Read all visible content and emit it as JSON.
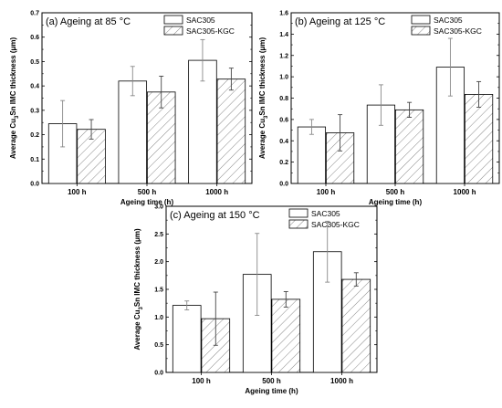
{
  "chart_data": [
    {
      "type": "bar",
      "title": "(a)  Ageing at 85 °C",
      "xlabel": "Ageing time (h)",
      "ylabel_parts": [
        "Average Cu",
        "3",
        "Sn IMC thickness (μm)"
      ],
      "categories": [
        "100 h",
        "500 h",
        "1000 h"
      ],
      "ylim": [
        0,
        0.7
      ],
      "yticks": [
        "0.0",
        "0.1",
        "0.2",
        "0.3",
        "0.4",
        "0.5",
        "0.6",
        "0.7"
      ],
      "legend_position": "top-right",
      "series": [
        {
          "name": "SAC305",
          "values": [
            0.245,
            0.42,
            0.505
          ],
          "errors": [
            0.095,
            0.06,
            0.085
          ]
        },
        {
          "name": "SAC305-KGC",
          "values": [
            0.222,
            0.375,
            0.428
          ],
          "errors": [
            0.04,
            0.065,
            0.045
          ]
        }
      ]
    },
    {
      "type": "bar",
      "title": "(b)  Ageing at 125 °C",
      "xlabel": "Ageing time (h)",
      "ylabel_parts": [
        "Average Cu",
        "3",
        "Sn IMC thickness (μm)"
      ],
      "categories": [
        "100 h",
        "500 h",
        "1000 h"
      ],
      "ylim": [
        0,
        1.6
      ],
      "yticks": [
        "0.0",
        "0.2",
        "0.4",
        "0.6",
        "0.8",
        "1.0",
        "1.2",
        "1.4",
        "1.6"
      ],
      "legend_position": "top-right",
      "series": [
        {
          "name": "SAC305",
          "values": [
            0.53,
            0.735,
            1.09
          ],
          "errors": [
            0.07,
            0.19,
            0.27
          ]
        },
        {
          "name": "SAC305-KGC",
          "values": [
            0.475,
            0.69,
            0.835
          ],
          "errors": [
            0.17,
            0.07,
            0.12
          ]
        }
      ]
    },
    {
      "type": "bar",
      "title": "(c)  Ageing at 150 °C",
      "xlabel": "Ageing time (h)",
      "ylabel_parts": [
        "Average Cu",
        "3",
        "Sn IMC thickness (μm)"
      ],
      "categories": [
        "100 h",
        "500 h",
        "1000 h"
      ],
      "ylim": [
        0,
        3.0
      ],
      "yticks": [
        "0.0",
        "0.5",
        "1.0",
        "1.5",
        "2.0",
        "2.5",
        "3.0"
      ],
      "legend_position": "top-right",
      "series": [
        {
          "name": "SAC305",
          "values": [
            1.21,
            1.77,
            2.18
          ],
          "errors": [
            0.08,
            0.74,
            0.55
          ]
        },
        {
          "name": "SAC305-KGC",
          "values": [
            0.97,
            1.32,
            1.68
          ],
          "errors": [
            0.48,
            0.14,
            0.12
          ]
        }
      ]
    }
  ]
}
